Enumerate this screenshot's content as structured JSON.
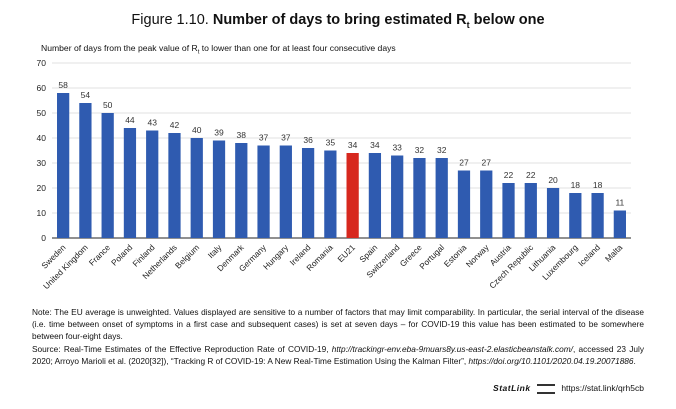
{
  "figure": {
    "number": "Figure 1.10.",
    "title_main": "Number of days to bring estimated R",
    "title_sub": "t",
    "title_tail": " below one",
    "subtitle_pre": "Number of days from the peak value of R",
    "subtitle_sub": "t",
    "subtitle_post": " to lower than one for at least four consecutive days"
  },
  "chart_data": {
    "type": "bar",
    "categories": [
      "Sweden",
      "United Kingdom",
      "France",
      "Poland",
      "Finland",
      "Netherlands",
      "Belgium",
      "Italy",
      "Denmark",
      "Germany",
      "Hungary",
      "Ireland",
      "Romania",
      "EU21",
      "Spain",
      "Switzerland",
      "Greece",
      "Portugal",
      "Estonia",
      "Norway",
      "Austria",
      "Czech Republic",
      "Lithuania",
      "Luxembourg",
      "Iceland",
      "Malta"
    ],
    "values": [
      58,
      54,
      50,
      44,
      43,
      42,
      40,
      39,
      38,
      37,
      37,
      36,
      35,
      34,
      34,
      33,
      32,
      32,
      27,
      27,
      22,
      22,
      20,
      18,
      18,
      11
    ],
    "highlight": "EU21",
    "ylim": [
      0,
      70
    ],
    "yticks": [
      0,
      10,
      20,
      30,
      40,
      50,
      60,
      70
    ],
    "grid": true,
    "colors": {
      "bar": "#2f5bb0",
      "highlight": "#d7281e",
      "grid": "#d9d9d9"
    }
  },
  "note": {
    "line1": "Note: The EU average is unweighted. Values displayed are sensitive to a number of factors that may limit comparability. In particular, the serial interval of the disease (i.e. time between onset of symptoms in a first case and subsequent cases) is set at seven days – for COVID-19 this value has been estimated to be somewhere between four-eight days.",
    "source_a": "Source: Real-Time Estimates of the Effective Reproduction Rate of COVID-19, ",
    "source_url1": "http://trackingr-env.eba-9muars8y.us-east-2.elasticbeanstalk.com/",
    "source_b": ", accessed 23 July 2020; Arroyo Marioli et al. (2020[32]), “Tracking R of COVID-19: A New Real-Time Estimation Using the Kalman Filter”, ",
    "source_url2": "https://doi.org/10.1101/2020.04.19.20071886",
    "source_c": "."
  },
  "statlink": {
    "brand": "StatLink",
    "url": "https://stat.link/qrh5cb"
  }
}
